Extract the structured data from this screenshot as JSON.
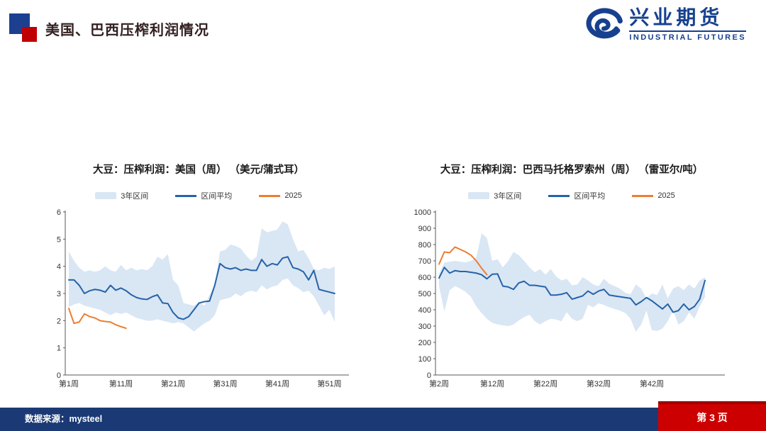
{
  "header": {
    "title": "美国、巴西压榨利润情况"
  },
  "logo": {
    "name_cn": "兴业期货",
    "name_en": "INDUSTRIAL FUTURES"
  },
  "footer": {
    "source_label": "数据来源：mysteel",
    "page_label": "第 3 页"
  },
  "colors": {
    "title_text": "#332020",
    "mark_blue": "#1C3F90",
    "mark_red": "#C00000",
    "logo_blue": "#17418F",
    "footer_bar": "#1B3A75",
    "footer_accent": "#CC0000",
    "footer_accent_dark": "#A00000",
    "band": "#D9E6F4",
    "mean_line": "#2563A8",
    "line_2025": "#EE7D31",
    "axis": "#595959",
    "tick_text": "#333333"
  },
  "chart_data": [
    {
      "type": "area",
      "title": "大豆：压榨利润：美国（周） （美元/蒲式耳）",
      "x_unit": "周",
      "x_start": 1,
      "x_tick_weeks": [
        1,
        11,
        21,
        31,
        41,
        51
      ],
      "x_tick_labels": [
        "第1周",
        "第11周",
        "第21周",
        "第31周",
        "第41周",
        "第51周"
      ],
      "ylim": [
        0,
        6
      ],
      "yticks": [
        0,
        1,
        2,
        3,
        4,
        5,
        6
      ],
      "legend_position": "top",
      "grid": false,
      "series": [
        {
          "name": "3年区间",
          "type": "band",
          "color": "#D9E6F4",
          "upper": [
            4.55,
            4.2,
            3.95,
            3.8,
            3.85,
            3.8,
            3.85,
            4.0,
            3.85,
            3.8,
            4.05,
            3.85,
            3.95,
            3.85,
            3.9,
            3.85,
            4.0,
            4.35,
            4.25,
            4.45,
            3.5,
            3.3,
            2.65,
            2.6,
            2.55,
            2.7,
            2.55,
            2.95,
            3.3,
            4.55,
            4.6,
            4.8,
            4.75,
            4.65,
            4.4,
            4.2,
            4.35,
            5.4,
            5.25,
            5.3,
            5.35,
            5.65,
            5.55,
            5.0,
            4.55,
            4.6,
            4.3,
            3.9,
            3.85,
            3.95,
            3.9,
            4.0
          ],
          "lower": [
            2.5,
            2.6,
            2.65,
            2.55,
            2.5,
            2.45,
            2.4,
            2.3,
            2.2,
            2.3,
            2.25,
            2.3,
            2.2,
            2.1,
            2.05,
            2.0,
            2.0,
            2.05,
            2.0,
            1.95,
            1.9,
            1.95,
            1.9,
            1.75,
            1.6,
            1.75,
            1.9,
            2.0,
            2.2,
            2.75,
            2.8,
            2.85,
            3.0,
            2.9,
            3.05,
            3.1,
            3.05,
            3.3,
            3.15,
            3.25,
            3.3,
            3.5,
            3.55,
            3.3,
            3.2,
            3.05,
            3.1,
            2.9,
            2.55,
            2.2,
            2.4,
            1.95
          ]
        },
        {
          "name": "区间平均",
          "type": "line",
          "color": "#2563A8",
          "values": [
            3.5,
            3.5,
            3.3,
            3.0,
            3.1,
            3.15,
            3.12,
            3.05,
            3.3,
            3.12,
            3.2,
            3.1,
            2.95,
            2.85,
            2.8,
            2.78,
            2.88,
            2.95,
            2.65,
            2.63,
            2.3,
            2.1,
            2.05,
            2.15,
            2.4,
            2.65,
            2.7,
            2.72,
            3.3,
            4.1,
            3.95,
            3.9,
            3.95,
            3.85,
            3.9,
            3.85,
            3.85,
            4.25,
            4.0,
            4.1,
            4.05,
            4.3,
            4.35,
            3.95,
            3.9,
            3.8,
            3.5,
            3.85,
            3.15,
            3.1,
            3.05,
            3.0
          ]
        },
        {
          "name": "2025",
          "type": "line",
          "color": "#EE7D31",
          "values": [
            2.45,
            1.9,
            1.95,
            2.25,
            2.15,
            2.1,
            2.0,
            1.97,
            1.95,
            1.85,
            1.78,
            1.72
          ]
        }
      ]
    },
    {
      "type": "area",
      "title": "大豆：压榨利润：巴西马托格罗索州（周） （雷亚尔/吨）",
      "x_unit": "周",
      "x_start": 2,
      "x_tick_weeks": [
        2,
        12,
        22,
        32,
        42
      ],
      "x_tick_labels": [
        "第2周",
        "第12周",
        "第22周",
        "第32周",
        "第42周"
      ],
      "ylim": [
        0,
        1000
      ],
      "yticks": [
        0,
        100,
        200,
        300,
        400,
        500,
        600,
        700,
        800,
        900,
        1000
      ],
      "legend_position": "top",
      "grid": false,
      "series": [
        {
          "name": "3年区间",
          "type": "band",
          "color": "#D9E6F4",
          "upper": [
            620,
            690,
            695,
            700,
            695,
            690,
            700,
            720,
            870,
            840,
            700,
            710,
            660,
            700,
            755,
            735,
            700,
            660,
            630,
            650,
            615,
            650,
            605,
            580,
            590,
            550,
            555,
            600,
            580,
            555,
            545,
            590,
            560,
            545,
            530,
            505,
            495,
            555,
            530,
            470,
            500,
            490,
            555,
            470,
            530,
            545,
            520,
            555,
            530,
            580,
            600
          ],
          "lower": [
            545,
            390,
            520,
            545,
            530,
            510,
            480,
            420,
            380,
            345,
            320,
            310,
            305,
            300,
            310,
            335,
            355,
            370,
            330,
            310,
            330,
            345,
            340,
            330,
            385,
            345,
            330,
            345,
            430,
            415,
            440,
            430,
            415,
            405,
            395,
            380,
            345,
            265,
            310,
            395,
            275,
            270,
            285,
            330,
            395,
            310,
            330,
            385,
            345,
            420,
            480
          ]
        },
        {
          "name": "区间平均",
          "type": "line",
          "color": "#2563A8",
          "values": [
            595,
            660,
            625,
            640,
            635,
            635,
            630,
            625,
            615,
            590,
            618,
            620,
            545,
            540,
            525,
            565,
            575,
            550,
            550,
            545,
            540,
            490,
            490,
            495,
            505,
            465,
            475,
            485,
            515,
            495,
            515,
            525,
            490,
            485,
            480,
            475,
            470,
            430,
            450,
            475,
            455,
            430,
            405,
            435,
            385,
            395,
            435,
            400,
            420,
            465,
            580
          ]
        },
        {
          "name": "2025",
          "type": "line",
          "color": "#EE7D31",
          "values": [
            680,
            755,
            750,
            785,
            770,
            755,
            735,
            700,
            655,
            615
          ]
        }
      ]
    }
  ]
}
